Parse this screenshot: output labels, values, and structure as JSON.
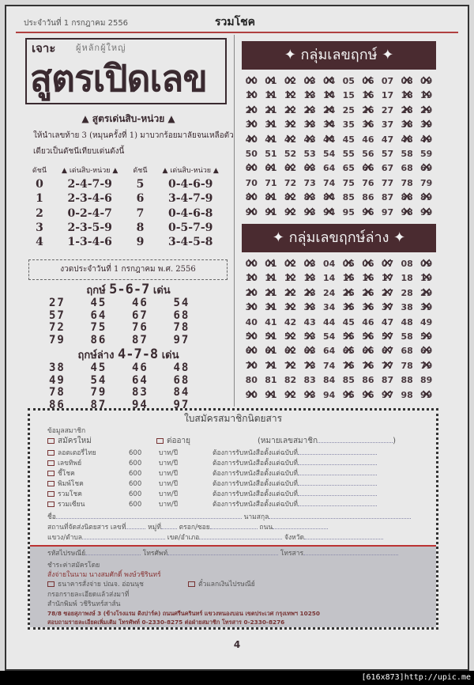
{
  "header": {
    "date": "ประจำวันที่ 1 กรกฎาคม 2556",
    "logo": "รวมโชค"
  },
  "title": {
    "prefix": "เจาะ",
    "prefix_deco": "ผู้หลักผู้ใหญ่",
    "main": "สูตรเปิดเลข"
  },
  "formula": {
    "subtitle": "▲ สูตรเด่นสิบ-หน่วย ▲",
    "description": "ให้นำเลขท้าย 3 (หมุนครั้งที่ 1) มาบวกร้อยมาลัยจนเหลือตัวเดียวเป็นดัชนีเทียบเด่นดังนี้",
    "headers": [
      "ดัชนี",
      "▲ เด่นสิบ-หน่วย ▲",
      "ดัชนี",
      "▲ เด่นสิบ-หน่วย ▲"
    ],
    "rows": [
      [
        "0",
        "2-4-7-9",
        "5",
        "0-4-6-9"
      ],
      [
        "1",
        "2-3-4-6",
        "6",
        "3-4-7-9"
      ],
      [
        "2",
        "0-2-4-7",
        "7",
        "0-4-6-8"
      ],
      [
        "3",
        "2-3-5-9",
        "8",
        "0-5-7-9"
      ],
      [
        "4",
        "1-3-4-6",
        "9",
        "3-4-5-8"
      ]
    ]
  },
  "draw_date": "งวดประจำวันที่ 1 กรกฎาคม พ.ศ. 2556",
  "lucky_upper": {
    "label": "ฤกษ์",
    "digits": "5-6-7",
    "suffix": "เด่น",
    "numbers": [
      "27",
      "45",
      "46",
      "54",
      "57",
      "64",
      "67",
      "68",
      "72",
      "75",
      "76",
      "78",
      "79",
      "86",
      "87",
      "97"
    ]
  },
  "lucky_lower": {
    "label": "ฤกษ์ล่าง",
    "digits": "4-7-8",
    "suffix": "เด่น",
    "numbers": [
      "38",
      "45",
      "46",
      "48",
      "49",
      "54",
      "64",
      "68",
      "78",
      "79",
      "83",
      "84",
      "86",
      "87",
      "94",
      "97"
    ]
  },
  "group_upper": {
    "title": "กลุ่มเลขฤกษ์",
    "icon": "four-point-star-icon",
    "active": [
      "05",
      "07",
      "15",
      "17",
      "25",
      "27",
      "35",
      "37",
      "45",
      "46",
      "47",
      "50",
      "51",
      "52",
      "53",
      "54",
      "55",
      "56",
      "57",
      "58",
      "59",
      "64",
      "65",
      "67",
      "68",
      "70",
      "71",
      "72",
      "73",
      "74",
      "75",
      "76",
      "77",
      "78",
      "79",
      "85",
      "86",
      "87",
      "95",
      "97"
    ]
  },
  "group_lower": {
    "title": "กลุ่มเลขฤกษ์ล่าง",
    "icon": "four-point-star-icon",
    "active": [
      "04",
      "08",
      "14",
      "18",
      "24",
      "28",
      "34",
      "38",
      "40",
      "41",
      "42",
      "43",
      "44",
      "45",
      "46",
      "47",
      "48",
      "49",
      "54",
      "58",
      "64",
      "68",
      "74",
      "78",
      "80",
      "81",
      "82",
      "83",
      "84",
      "85",
      "86",
      "87",
      "88",
      "89",
      "94",
      "98"
    ]
  },
  "form": {
    "title": "ใบสมัครสมาชิกนิตยสาร",
    "section": "ข้อมูลสมาชิก",
    "new_member": "สมัครใหม่",
    "renew": "ต่ออายุ",
    "member_no": "(หมายเลขสมาชิก",
    "subs": [
      {
        "name": "ลอตเตอรี่ไทย"
      },
      {
        "name": "เลขทิพย์"
      },
      {
        "name": "ชี้โชค"
      },
      {
        "name": "พิมพ์โชค"
      },
      {
        "name": "รวมโชค"
      },
      {
        "name": "รวมเซียน"
      }
    ],
    "price": "600",
    "unit": "บาท/ปี",
    "start": "ต้องการรับหนังสือตั้งแต่ฉบับที่",
    "name": "ชื่อ",
    "surname": "นามสกุล",
    "address": "สถานที่จัดส่งนิตยสาร เลขที่",
    "moo": "หมู่ที่",
    "soi": "ตรอก/ซอย",
    "road": "ถนน",
    "subdistrict": "แขวง/ตำบล",
    "district": "เขต/อำเภอ",
    "province": "จังหวัด",
    "postcode": "รหัสไปรษณีย์",
    "phone": "โทรศัพท์",
    "fax": "โทรสาร",
    "pay_title": "ชำระค่าสมัครโดย",
    "pay_to": "สั่งจ่ายในนาม นางสมศักดิ์ พงษ์วชิรินทร์",
    "pay_bank": "ธนาคารสั่งจ่าย ปณจ. อ่อนนุช",
    "pay_postal": "ตั๋วแลกเงินไปรษณีย์",
    "send": "กรอกรายละเอียดแล้วส่งมาที่",
    "publisher": "สำนักพิมพ์ วชิรินทร์สาส์น",
    "address_line": "78/8 ซอยสุภาพงษ์ 3 (ข้างโรงแรม ดิงปาร์ค) ถนนศรีนครินทร์ แขวงหนองบอน เขตประเวศ กรุงเทพฯ 10250",
    "contact_line": "สอบถามรายละเอียดเพิ่มเติม โทรศัพท์ 0-2330-8275 ต่อฝ่ายสมาชิก โทรสาร 0-2330-8276"
  },
  "page_number": "4",
  "watermark": "[616x873]http://upic.me"
}
